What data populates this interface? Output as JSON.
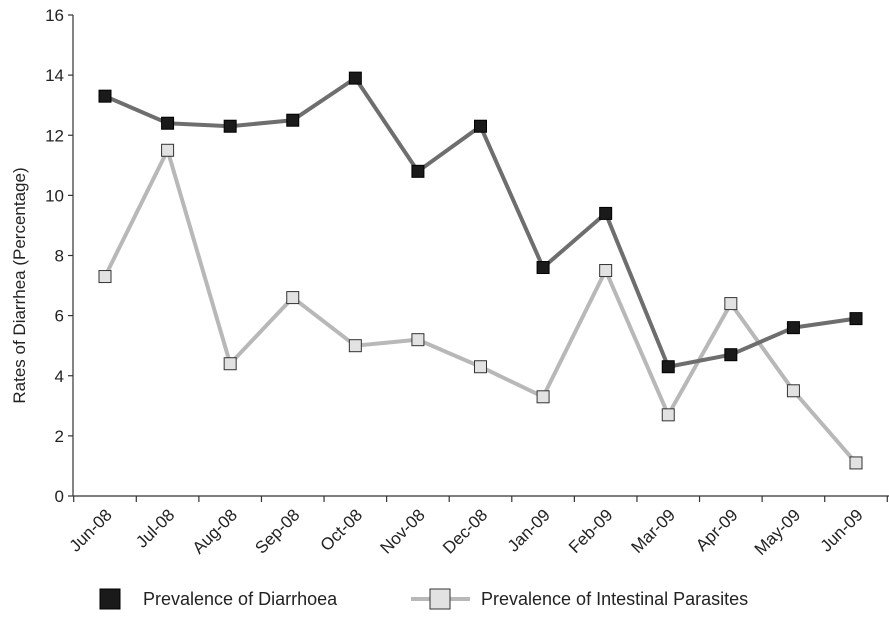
{
  "chart_data": {
    "type": "line",
    "title": "",
    "xlabel": "",
    "ylabel": "Rates of Diarrhea (Percentage)",
    "ylim": [
      0,
      16
    ],
    "yticks": [
      0,
      2,
      4,
      6,
      8,
      10,
      12,
      14,
      16
    ],
    "categories": [
      "Jun-08",
      "Jul-08",
      "Aug-08",
      "Sep-08",
      "Oct-08",
      "Nov-08",
      "Dec-08",
      "Jan-09",
      "Feb-09",
      "Mar-09",
      "Apr-09",
      "May-09",
      "Jun-09"
    ],
    "grid": false,
    "legend_position": "bottom",
    "series": [
      {
        "name": "Prevalence of Diarrhoea",
        "values": [
          13.3,
          12.4,
          12.3,
          12.5,
          13.9,
          10.8,
          12.3,
          7.6,
          9.4,
          4.3,
          4.7,
          5.6,
          5.9
        ],
        "line_color": "#6e6e6e",
        "marker_fill": "#1a1a1a",
        "marker_stroke": "#000000"
      },
      {
        "name": "Prevalence of Intestinal Parasites",
        "values": [
          7.3,
          11.5,
          4.4,
          6.6,
          5.0,
          5.2,
          4.3,
          3.3,
          7.5,
          2.7,
          6.4,
          3.5,
          1.1
        ],
        "line_color": "#b8b8b8",
        "marker_fill": "#e2e2e2",
        "marker_stroke": "#333333"
      }
    ]
  }
}
